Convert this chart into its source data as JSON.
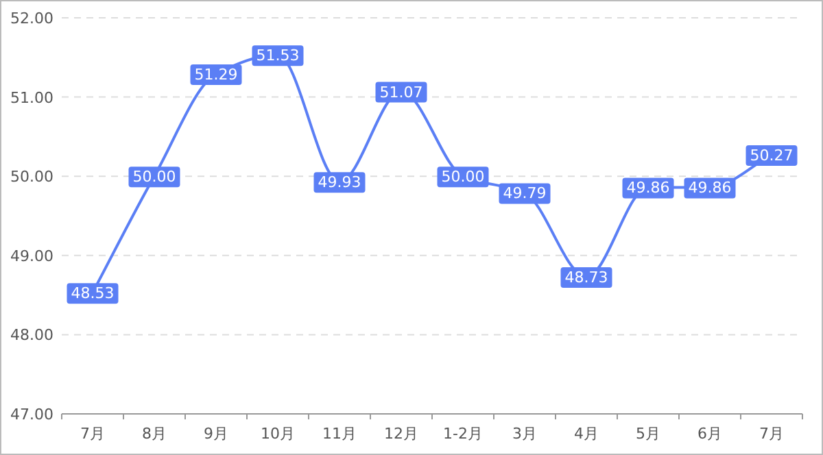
{
  "chart_data": {
    "type": "line",
    "categories": [
      "7月",
      "8月",
      "9月",
      "10月",
      "11月",
      "12月",
      "1-2月",
      "3月",
      "4月",
      "5月",
      "6月",
      "7月"
    ],
    "series": [
      {
        "color": "#5b7ff5",
        "values": [
          48.53,
          50.0,
          51.29,
          51.53,
          49.93,
          51.07,
          50.0,
          49.79,
          48.73,
          49.86,
          49.86,
          50.27
        ],
        "value_labels": [
          "48.53",
          "50.00",
          "51.29",
          "51.53",
          "49.93",
          "51.07",
          "50.00",
          "49.79",
          "48.73",
          "49.86",
          "49.86",
          "50.27"
        ]
      }
    ],
    "ylim": [
      47,
      52
    ],
    "yticks": [
      {
        "value": 47,
        "label": "47.00"
      },
      {
        "value": 48,
        "label": "48.00"
      },
      {
        "value": 49,
        "label": "49.00"
      },
      {
        "value": 50,
        "label": "50.00"
      },
      {
        "value": 51,
        "label": "51.00"
      },
      {
        "value": 52,
        "label": "52.00"
      }
    ],
    "grid": "y",
    "marker": "square",
    "line_style": "solid"
  }
}
